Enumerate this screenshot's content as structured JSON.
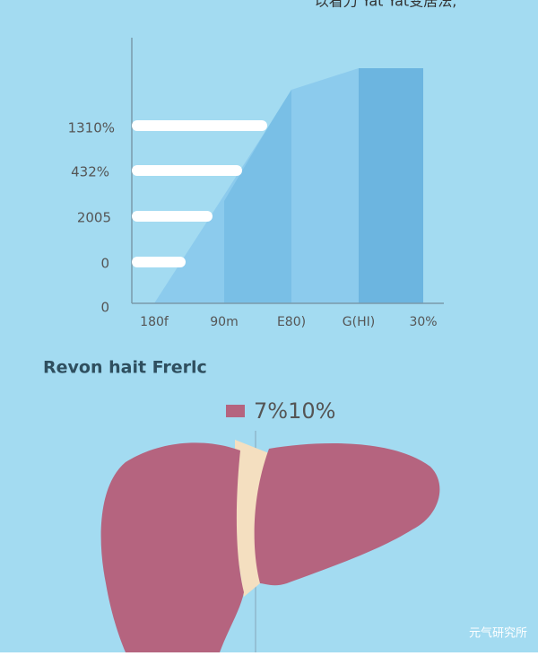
{
  "header": {
    "title": "以看刀 Yat Yat变居法,"
  },
  "chart": {
    "y_labels": [
      "1310%",
      "432%",
      "2005",
      "0",
      "0"
    ],
    "x_labels": [
      "180f",
      "90m",
      "E80)",
      "G(HI)",
      "30%"
    ]
  },
  "section": {
    "title": "Revon hait Frerlc",
    "legend": "7%10%"
  },
  "watermark": "元气研究所"
}
